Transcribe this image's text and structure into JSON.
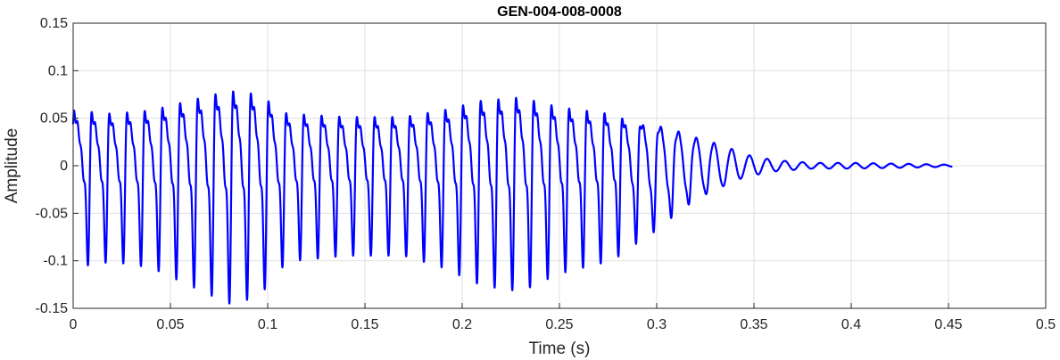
{
  "chart_data": {
    "type": "line",
    "title": "GEN-004-008-0008",
    "xlabel": "Time (s)",
    "ylabel": "Amplitude",
    "xlim": [
      0,
      0.5
    ],
    "ylim": [
      -0.15,
      0.15
    ],
    "xticks": [
      0,
      0.05,
      0.1,
      0.15,
      0.2,
      0.25,
      0.3,
      0.35,
      0.4,
      0.45,
      0.5
    ],
    "xtick_labels": [
      "0",
      "0.05",
      "0.1",
      "0.15",
      "0.2",
      "0.25",
      "0.3",
      "0.35",
      "0.4",
      "0.45",
      "0.5"
    ],
    "yticks": [
      0.15,
      0.1,
      0.05,
      0,
      -0.05,
      -0.1,
      -0.15
    ],
    "ytick_labels": [
      "0.15",
      "0.1",
      "0.05",
      "0",
      "-0.05",
      "-0.1",
      "-0.15"
    ],
    "grid": true,
    "series_color": "#0000ff",
    "signal": {
      "duration": 0.452,
      "fundamental_hz": 110,
      "envelope": [
        [
          0,
          0.085
        ],
        [
          0.02,
          0.08
        ],
        [
          0.04,
          0.085
        ],
        [
          0.06,
          0.1
        ],
        [
          0.08,
          0.115
        ],
        [
          0.095,
          0.11
        ],
        [
          0.11,
          0.08
        ],
        [
          0.14,
          0.075
        ],
        [
          0.17,
          0.075
        ],
        [
          0.19,
          0.085
        ],
        [
          0.21,
          0.1
        ],
        [
          0.23,
          0.105
        ],
        [
          0.25,
          0.09
        ],
        [
          0.275,
          0.08
        ],
        [
          0.3,
          0.06
        ],
        [
          0.32,
          0.035
        ],
        [
          0.345,
          0.012
        ],
        [
          0.36,
          0.006
        ],
        [
          0.38,
          0.003
        ],
        [
          0.4,
          0.003
        ],
        [
          0.43,
          0.002
        ],
        [
          0.452,
          0.001
        ]
      ]
    }
  }
}
